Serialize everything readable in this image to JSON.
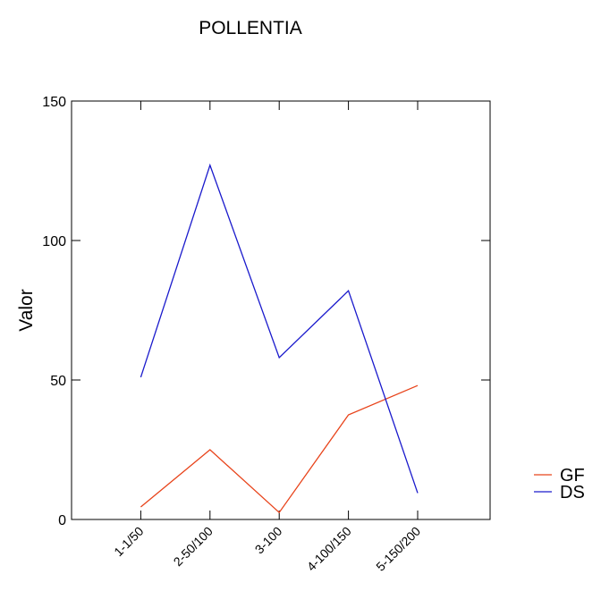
{
  "chart_data": {
    "type": "line",
    "title": "POLLENTIA",
    "xlabel": "",
    "ylabel": "Valor",
    "categories": [
      "1-1/50",
      "2-50/100",
      "3-100",
      "4-100/150",
      "5-150/200"
    ],
    "series": [
      {
        "name": "GF",
        "color": "#e8431a",
        "values": [
          4.5,
          25,
          2.5,
          37.5,
          48
        ]
      },
      {
        "name": "DS",
        "color": "#1a1acc",
        "values": [
          51,
          127,
          58,
          82,
          9.5
        ]
      }
    ],
    "ylim": [
      0,
      150
    ],
    "yticks": [
      0,
      50,
      100,
      150
    ],
    "grid": false,
    "legend": "right"
  }
}
